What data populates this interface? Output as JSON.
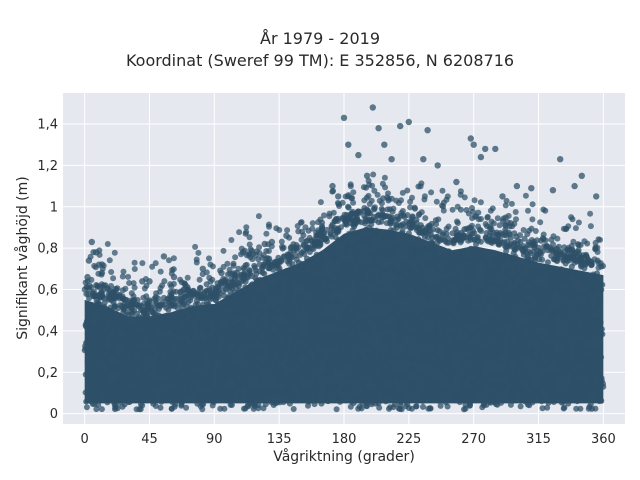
{
  "chart_data": {
    "type": "scatter",
    "title": "År 1979 - 2019",
    "subtitle": "Koordinat (Sweref 99 TM): E 352856, N 6208716",
    "xlabel": "Vågriktning (grader)",
    "ylabel": "Signifikant våghöjd (m)",
    "xlim": [
      -15,
      375
    ],
    "ylim": [
      -0.05,
      1.55
    ],
    "xticks": [
      "0",
      "45",
      "90",
      "135",
      "180",
      "225",
      "270",
      "315",
      "360"
    ],
    "yticks": [
      "0",
      "0,2",
      "0,4",
      "0,6",
      "0,8",
      "1",
      "1,2",
      "1,4"
    ],
    "grid": true,
    "marker_color": "#2e5068",
    "plot_bg": "#e6e8ef",
    "upper_envelope": [
      {
        "x": 0,
        "y": 0.58
      },
      {
        "x": 15,
        "y": 0.55
      },
      {
        "x": 30,
        "y": 0.5
      },
      {
        "x": 45,
        "y": 0.5
      },
      {
        "x": 60,
        "y": 0.52
      },
      {
        "x": 75,
        "y": 0.55
      },
      {
        "x": 90,
        "y": 0.56
      },
      {
        "x": 105,
        "y": 0.62
      },
      {
        "x": 120,
        "y": 0.68
      },
      {
        "x": 135,
        "y": 0.72
      },
      {
        "x": 150,
        "y": 0.76
      },
      {
        "x": 165,
        "y": 0.82
      },
      {
        "x": 180,
        "y": 0.9
      },
      {
        "x": 195,
        "y": 0.93
      },
      {
        "x": 210,
        "y": 0.92
      },
      {
        "x": 225,
        "y": 0.9
      },
      {
        "x": 240,
        "y": 0.86
      },
      {
        "x": 255,
        "y": 0.82
      },
      {
        "x": 270,
        "y": 0.84
      },
      {
        "x": 285,
        "y": 0.82
      },
      {
        "x": 300,
        "y": 0.79
      },
      {
        "x": 315,
        "y": 0.76
      },
      {
        "x": 330,
        "y": 0.74
      },
      {
        "x": 345,
        "y": 0.72
      },
      {
        "x": 360,
        "y": 0.7
      }
    ],
    "outliers": [
      {
        "x": 200,
        "y": 1.48
      },
      {
        "x": 204,
        "y": 1.38
      },
      {
        "x": 225,
        "y": 1.41
      },
      {
        "x": 219,
        "y": 1.39
      },
      {
        "x": 238,
        "y": 1.37
      },
      {
        "x": 268,
        "y": 1.33
      },
      {
        "x": 278,
        "y": 1.28
      },
      {
        "x": 285,
        "y": 1.28
      },
      {
        "x": 270,
        "y": 1.3
      },
      {
        "x": 180,
        "y": 1.43
      },
      {
        "x": 183,
        "y": 1.3
      },
      {
        "x": 190,
        "y": 1.25
      },
      {
        "x": 208,
        "y": 1.3
      },
      {
        "x": 213,
        "y": 1.23
      },
      {
        "x": 235,
        "y": 1.23
      },
      {
        "x": 245,
        "y": 1.2
      },
      {
        "x": 275,
        "y": 1.24
      },
      {
        "x": 330,
        "y": 1.23
      },
      {
        "x": 345,
        "y": 1.15
      },
      {
        "x": 310,
        "y": 1.09
      },
      {
        "x": 325,
        "y": 1.08
      },
      {
        "x": 340,
        "y": 1.1
      },
      {
        "x": 355,
        "y": 1.05
      },
      {
        "x": 300,
        "y": 1.1
      },
      {
        "x": 172,
        "y": 1.1
      },
      {
        "x": 176,
        "y": 1.05
      },
      {
        "x": 196,
        "y": 1.15
      },
      {
        "x": 258,
        "y": 1.12
      },
      {
        "x": 290,
        "y": 1.05
      },
      {
        "x": 110,
        "y": 0.78
      },
      {
        "x": 125,
        "y": 0.82
      },
      {
        "x": 130,
        "y": 0.83
      },
      {
        "x": 140,
        "y": 0.86
      },
      {
        "x": 5,
        "y": 0.83
      },
      {
        "x": 8,
        "y": 0.78
      },
      {
        "x": 3,
        "y": 0.74
      },
      {
        "x": 10,
        "y": 0.72
      },
      {
        "x": 12,
        "y": 0.68
      },
      {
        "x": 2,
        "y": 0.66
      },
      {
        "x": 55,
        "y": 0.76
      },
      {
        "x": 45,
        "y": 0.64
      },
      {
        "x": 40,
        "y": 0.64
      },
      {
        "x": 62,
        "y": 0.66
      },
      {
        "x": 82,
        "y": 0.7
      },
      {
        "x": 95,
        "y": 0.68
      },
      {
        "x": 70,
        "y": 0.62
      },
      {
        "x": 28,
        "y": 0.55
      },
      {
        "x": 20,
        "y": 0.54
      }
    ]
  }
}
